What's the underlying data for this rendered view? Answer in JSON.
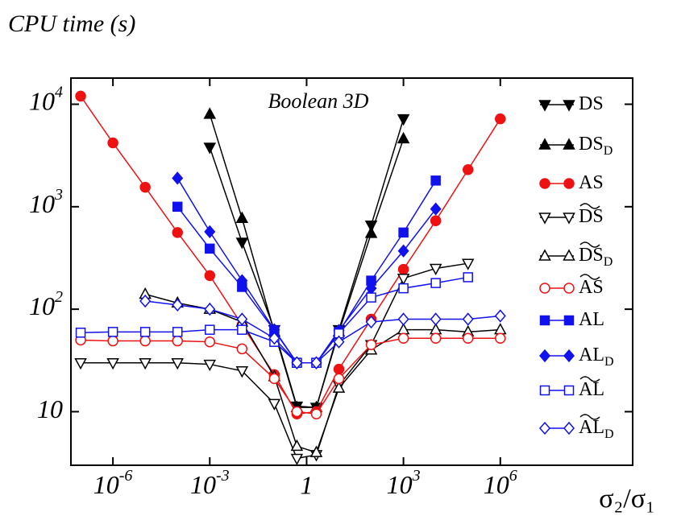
{
  "chart_data": {
    "type": "line",
    "title": "CPU time (s)",
    "annotation": "Boolean 3D",
    "xlabel": "σ₂/σ₁",
    "xscale": "log",
    "yscale": "log",
    "xlim": [
      5e-08,
      12600000000.0
    ],
    "ylim": [
      3,
      18000
    ],
    "xticks": [
      {
        "value": 1e-06,
        "label": "10",
        "sup": "-6"
      },
      {
        "value": 0.001,
        "label": "10",
        "sup": "-3"
      },
      1,
      {
        "value": 1000,
        "label": "10",
        "sup": "3"
      },
      {
        "value": 1000000.0,
        "label": "10",
        "sup": "6"
      }
    ],
    "yticks": [
      10,
      {
        "value": 100,
        "label": "10",
        "sup": "2"
      },
      {
        "value": 1000,
        "label": "10",
        "sup": "3"
      },
      {
        "value": 10000,
        "label": "10",
        "sup": "4"
      }
    ],
    "series": [
      {
        "name": "DS",
        "color": "#000000",
        "marker": "triangle-down",
        "filled": true,
        "tilde": false,
        "x": [
          0.001,
          0.01,
          0.1,
          0.5,
          2,
          10,
          100,
          1000
        ],
        "values": [
          3800,
          450,
          63,
          11.3,
          11,
          63,
          660,
          7200
        ]
      },
      {
        "name": "DS",
        "subscript": "D",
        "color": "#000000",
        "marker": "triangle-up",
        "filled": true,
        "tilde": false,
        "x": [
          0.001,
          0.01,
          0.1,
          0.5,
          2,
          10,
          100,
          1000
        ],
        "values": [
          8000,
          770,
          60,
          11,
          11,
          60,
          550,
          4600
        ]
      },
      {
        "name": "AS",
        "color": "#ee1111",
        "marker": "circle",
        "filled": true,
        "tilde": false,
        "x": [
          1e-07,
          1e-06,
          1e-05,
          0.0001,
          0.001,
          0.01,
          0.1,
          0.5,
          2,
          10,
          100,
          1000,
          10000,
          100000,
          1000000
        ],
        "values": [
          12000,
          4200,
          1550,
          560,
          213,
          70,
          23,
          9.5,
          10,
          26,
          80,
          245,
          730,
          2300,
          7200
        ]
      },
      {
        "name": "DS",
        "color": "#000000",
        "marker": "triangle-down",
        "filled": false,
        "tilde": true,
        "x": [
          1e-07,
          1e-06,
          1e-05,
          0.0001,
          0.001,
          0.01,
          0.1,
          0.5,
          2,
          10,
          100,
          1000,
          10000,
          100000
        ],
        "values": [
          30,
          30,
          30,
          30,
          29,
          25,
          12,
          3.5,
          3.8,
          18,
          45,
          200,
          250,
          280
        ]
      },
      {
        "name": "DS",
        "subscript": "D",
        "color": "#000000",
        "marker": "triangle-up",
        "filled": false,
        "tilde": true,
        "x": [
          1e-05,
          0.0001,
          0.001,
          0.01,
          0.1,
          0.5,
          2,
          10,
          100,
          1000,
          10000,
          100000,
          1000000
        ],
        "values": [
          140,
          115,
          100,
          75,
          22,
          4.6,
          4,
          17,
          40,
          63,
          63,
          60,
          63
        ]
      },
      {
        "name": "AS",
        "color": "#ee1111",
        "marker": "circle",
        "filled": false,
        "tilde": true,
        "x": [
          1e-07,
          1e-06,
          1e-05,
          0.0001,
          0.001,
          0.01,
          0.1,
          0.5,
          2,
          10,
          100,
          1000,
          10000,
          100000,
          1000000
        ],
        "values": [
          50,
          49,
          49,
          49,
          48,
          41,
          21,
          10,
          9.5,
          21,
          45,
          52,
          52,
          52,
          52
        ]
      },
      {
        "name": "AL",
        "color": "#1111ee",
        "marker": "square",
        "filled": true,
        "tilde": false,
        "x": [
          0.0001,
          0.001,
          0.01,
          0.1,
          0.5,
          2,
          10,
          100,
          1000,
          10000
        ],
        "values": [
          1000,
          390,
          165,
          62,
          30,
          30,
          60,
          190,
          560,
          1800
        ]
      },
      {
        "name": "AL",
        "subscript": "D",
        "color": "#1111ee",
        "marker": "diamond",
        "filled": true,
        "tilde": false,
        "x": [
          0.0001,
          0.001,
          0.01,
          0.1,
          0.5,
          2,
          10,
          100,
          1000,
          10000
        ],
        "values": [
          1900,
          570,
          190,
          63,
          30,
          30,
          62,
          160,
          370,
          950
        ]
      },
      {
        "name": "AL",
        "color": "#1111ee",
        "marker": "square",
        "filled": false,
        "tilde": true,
        "x": [
          1e-07,
          1e-06,
          1e-05,
          0.0001,
          0.001,
          0.01,
          0.1,
          0.5,
          2,
          10,
          100,
          1000,
          10000,
          100000
        ],
        "values": [
          59,
          60,
          60,
          60,
          63,
          63,
          48,
          30,
          30,
          58,
          130,
          160,
          180,
          205
        ]
      },
      {
        "name": "AL",
        "subscript": "D",
        "color": "#1111ee",
        "marker": "diamond",
        "filled": false,
        "tilde": true,
        "x": [
          1e-05,
          0.0001,
          0.001,
          0.01,
          0.1,
          0.5,
          2,
          10,
          100,
          1000,
          10000,
          100000,
          1000000
        ],
        "values": [
          120,
          110,
          100,
          80,
          52,
          30,
          30,
          48,
          75,
          80,
          80,
          80,
          86
        ]
      }
    ]
  }
}
